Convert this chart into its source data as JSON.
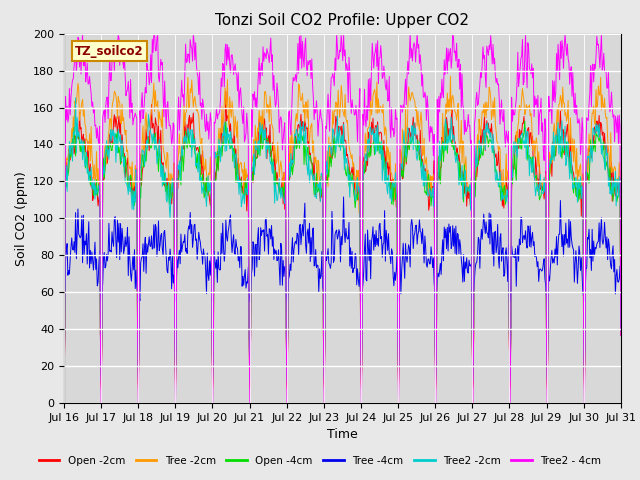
{
  "title": "Tonzi Soil CO2 Profile: Upper CO2",
  "xlabel": "Time",
  "ylabel": "Soil CO2 (ppm)",
  "ylim": [
    0,
    200
  ],
  "yticks": [
    0,
    20,
    40,
    60,
    80,
    100,
    120,
    140,
    160,
    180,
    200
  ],
  "xtick_labels": [
    "Jul 16",
    "Jul 17",
    "Jul 18",
    "Jul 19",
    "Jul 20",
    "Jul 21",
    "Jul 22",
    "Jul 23",
    "Jul 24",
    "Jul 25",
    "Jul 26",
    "Jul 27",
    "Jul 28",
    "Jul 29",
    "Jul 30",
    "Jul 31"
  ],
  "legend_label": "TZ_soilco2",
  "series": [
    {
      "name": "Open -2cm",
      "color": "#ff0000"
    },
    {
      "name": "Tree -2cm",
      "color": "#ff9900"
    },
    {
      "name": "Open -4cm",
      "color": "#00dd00"
    },
    {
      "name": "Tree -4cm",
      "color": "#0000ee"
    },
    {
      "name": "Tree2 -2cm",
      "color": "#00cccc"
    },
    {
      "name": "Tree2 - 4cm",
      "color": "#ff00ff"
    }
  ],
  "background_color": "#d8d8d8",
  "fig_facecolor": "#e8e8e8",
  "title_fontsize": 11,
  "label_fontsize": 9,
  "tick_fontsize": 8,
  "n_days": 15,
  "seed": 42
}
